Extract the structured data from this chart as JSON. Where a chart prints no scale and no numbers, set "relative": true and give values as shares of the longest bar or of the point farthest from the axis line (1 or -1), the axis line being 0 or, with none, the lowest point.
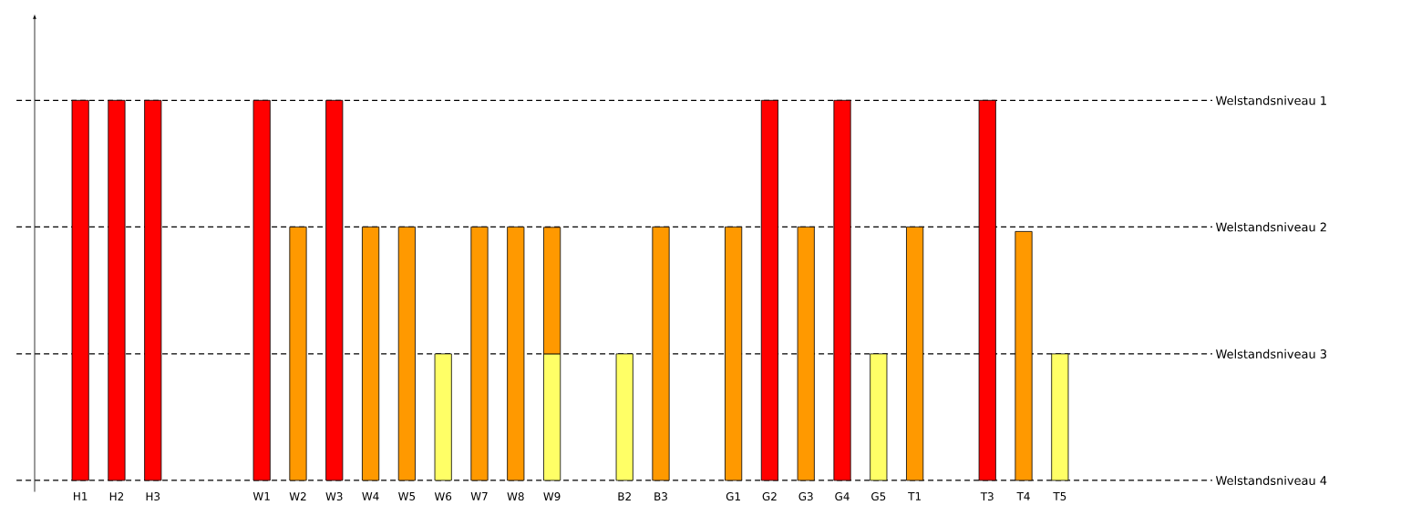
{
  "chart_data": {
    "type": "bar",
    "relative": true,
    "stacked": true,
    "categories": [
      "H1",
      "H2",
      "H3",
      null,
      null,
      "W1",
      "W2",
      "W3",
      "W4",
      "W5",
      "W6",
      "W7",
      "W8",
      "W9",
      null,
      "B2",
      "B3",
      null,
      "G1",
      "G2",
      "G3",
      "G4",
      "G5",
      "T1",
      null,
      "T3",
      "T4",
      "T5"
    ],
    "series": [
      {
        "color": "#ffff66",
        "values": [
          null,
          null,
          null,
          null,
          null,
          null,
          null,
          null,
          null,
          null,
          0.333,
          null,
          null,
          0.333,
          null,
          0.333,
          null,
          null,
          null,
          null,
          null,
          null,
          0.333,
          null,
          null,
          null,
          null,
          0.333
        ]
      },
      {
        "color": "#ff9900",
        "values": [
          null,
          null,
          null,
          null,
          null,
          null,
          0.667,
          null,
          0.667,
          0.667,
          null,
          0.667,
          0.667,
          0.333,
          null,
          null,
          0.667,
          null,
          0.667,
          null,
          0.667,
          null,
          null,
          0.667,
          null,
          null,
          0.655,
          null
        ]
      },
      {
        "color": "#ff0000",
        "values": [
          1,
          1,
          1,
          null,
          null,
          1,
          null,
          1,
          null,
          null,
          null,
          null,
          null,
          null,
          null,
          null,
          null,
          null,
          null,
          1,
          null,
          1,
          null,
          null,
          null,
          1,
          null,
          null
        ]
      }
    ],
    "ref_lines": [
      {
        "axis": "y",
        "value": 1,
        "label": "Welstandsniveau 1",
        "line_style": "dashed"
      },
      {
        "axis": "y",
        "value": 0.667,
        "label": "Welstandsniveau 2",
        "line_style": "dashed"
      },
      {
        "axis": "y",
        "value": 0.333,
        "label": "Welstandsniveau 3",
        "line_style": "dashed"
      },
      {
        "axis": "y",
        "value": 0,
        "label": "Welstandsniveau 4",
        "line_style": "dashed"
      }
    ]
  }
}
